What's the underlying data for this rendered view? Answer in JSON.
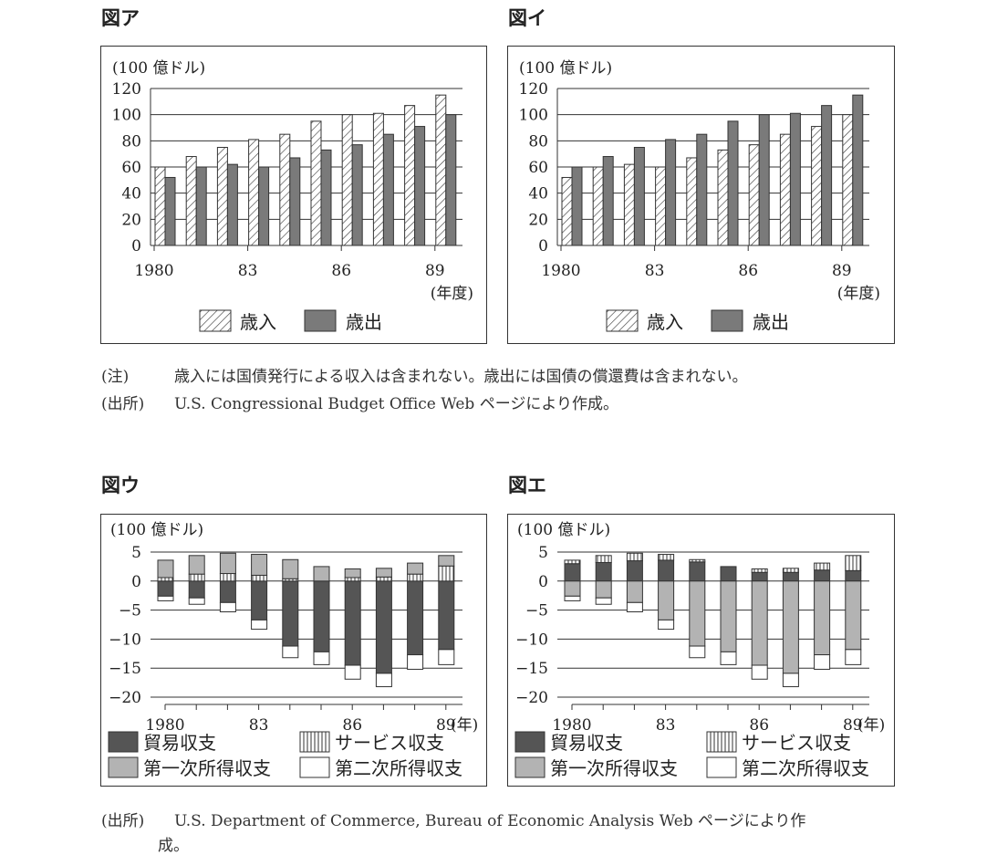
{
  "figures": {
    "a": {
      "title": "図ア",
      "unit": "(100 億ドル)",
      "year_suffix": "(年度)",
      "legend": [
        "歳入",
        "歳出"
      ]
    },
    "i": {
      "title": "図イ",
      "unit": "(100 億ドル)",
      "year_suffix": "(年度)",
      "legend": [
        "歳入",
        "歳出"
      ]
    },
    "u": {
      "title": "図ウ",
      "unit": "(100 億ドル)",
      "year_suffix": "(年)",
      "legend": [
        "貿易収支",
        "サービス収支",
        "第一次所得収支",
        "第二次所得収支"
      ]
    },
    "e": {
      "title": "図エ",
      "unit": "(100 億ドル)",
      "year_suffix": "(年)",
      "legend": [
        "貿易収支",
        "サービス収支",
        "第一次所得収支",
        "第二次所得収支"
      ]
    }
  },
  "notes": {
    "top_note_label": "(注)",
    "top_note_text": "歳入には国債発行による収入は含まれない。歳出には国債の償還費は含まれない。",
    "top_source_label": "(出所)",
    "top_source_text": "U.S. Congressional Budget Office Web ページにより作成。",
    "bottom_source_label": "(出所)",
    "bottom_source_text": "U.S. Department of Commerce, Bureau of Economic Analysis Web ページにより作",
    "bottom_source_text_cont": "成。"
  },
  "colors": {
    "bar_dark": "#7a7a7a",
    "trade": "#555555",
    "primary_income": "#b3b3b3",
    "service_fill": "#ffffff",
    "secondary_fill": "#ffffff",
    "axis": "#222222"
  },
  "chart_data": [
    {
      "id": "a",
      "type": "bar",
      "title": "図ア",
      "ylabel": "(100 億ドル)",
      "xlabel": "(年度)",
      "ylim": [
        0,
        120
      ],
      "yticks": [
        0,
        20,
        40,
        60,
        80,
        100,
        120
      ],
      "x": [
        1980,
        1981,
        1982,
        1983,
        1984,
        1985,
        1986,
        1987,
        1988,
        1989
      ],
      "xtick_labels": [
        "1980",
        "83",
        "86",
        "89"
      ],
      "xtick_years": [
        1980,
        1983,
        1986,
        1989
      ],
      "grid": true,
      "legend_position": "bottom",
      "series": [
        {
          "name": "歳入",
          "pattern": "hatch",
          "values": [
            60,
            68,
            75,
            81,
            85,
            95,
            100,
            101,
            107,
            115
          ]
        },
        {
          "name": "歳出",
          "pattern": "gray",
          "values": [
            52,
            60,
            62,
            60,
            67,
            73,
            77,
            85,
            91,
            100
          ]
        }
      ]
    },
    {
      "id": "i",
      "type": "bar",
      "title": "図イ",
      "ylabel": "(100 億ドル)",
      "xlabel": "(年度)",
      "ylim": [
        0,
        120
      ],
      "yticks": [
        0,
        20,
        40,
        60,
        80,
        100,
        120
      ],
      "x": [
        1980,
        1981,
        1982,
        1983,
        1984,
        1985,
        1986,
        1987,
        1988,
        1989
      ],
      "xtick_labels": [
        "1980",
        "83",
        "86",
        "89"
      ],
      "xtick_years": [
        1980,
        1983,
        1986,
        1989
      ],
      "grid": true,
      "legend_position": "bottom",
      "series": [
        {
          "name": "歳入",
          "pattern": "hatch",
          "values": [
            52,
            60,
            62,
            60,
            67,
            73,
            77,
            85,
            91,
            100
          ]
        },
        {
          "name": "歳出",
          "pattern": "gray",
          "values": [
            60,
            68,
            75,
            81,
            85,
            95,
            100,
            101,
            107,
            115
          ]
        }
      ]
    },
    {
      "id": "u",
      "type": "bar",
      "stacked": true,
      "title": "図ウ",
      "ylabel": "(100 億ドル)",
      "xlabel": "(年)",
      "ylim": [
        -20,
        5
      ],
      "yticks": [
        5,
        0,
        -5,
        -10,
        -15,
        -20
      ],
      "x": [
        1980,
        1981,
        1982,
        1983,
        1984,
        1985,
        1986,
        1987,
        1988,
        1989
      ],
      "xtick_labels": [
        "1980",
        "83",
        "86",
        "89"
      ],
      "xtick_years": [
        1980,
        1983,
        1986,
        1989
      ],
      "grid": true,
      "legend_position": "bottom",
      "series": [
        {
          "name": "貿易収支",
          "pattern": "trade",
          "values": [
            -2.6,
            -2.9,
            -3.7,
            -6.7,
            -11.2,
            -12.2,
            -14.5,
            -15.9,
            -12.7,
            -11.8
          ]
        },
        {
          "name": "サービス収支",
          "pattern": "vstripe",
          "values": [
            0.6,
            1.2,
            1.3,
            1.0,
            0.4,
            0.0,
            0.6,
            0.7,
            1.2,
            2.6
          ]
        },
        {
          "name": "第一次所得収支",
          "pattern": "primary",
          "values": [
            3.0,
            3.2,
            3.5,
            3.6,
            3.3,
            2.5,
            1.5,
            1.5,
            1.9,
            1.8
          ]
        },
        {
          "name": "第二次所得収支",
          "pattern": "white",
          "values": [
            -0.8,
            -1.1,
            -1.6,
            -1.6,
            -2.0,
            -2.2,
            -2.4,
            -2.3,
            -2.5,
            -2.6
          ]
        }
      ]
    },
    {
      "id": "e",
      "type": "bar",
      "stacked": true,
      "title": "図エ",
      "ylabel": "(100 億ドル)",
      "xlabel": "(年)",
      "ylim": [
        -20,
        5
      ],
      "yticks": [
        5,
        0,
        -5,
        -10,
        -15,
        -20
      ],
      "x": [
        1980,
        1981,
        1982,
        1983,
        1984,
        1985,
        1986,
        1987,
        1988,
        1989
      ],
      "xtick_labels": [
        "1980",
        "83",
        "86",
        "89"
      ],
      "xtick_years": [
        1980,
        1983,
        1986,
        1989
      ],
      "grid": true,
      "legend_position": "bottom",
      "series": [
        {
          "name": "貿易収支",
          "pattern": "trade",
          "values": [
            3.0,
            3.2,
            3.5,
            3.6,
            3.3,
            2.5,
            1.5,
            1.5,
            1.9,
            1.8
          ]
        },
        {
          "name": "サービス収支",
          "pattern": "vstripe",
          "values": [
            0.6,
            1.2,
            1.3,
            1.0,
            0.4,
            0.0,
            0.6,
            0.7,
            1.2,
            2.6
          ]
        },
        {
          "name": "第一次所得収支",
          "pattern": "primary",
          "values": [
            -2.6,
            -2.9,
            -3.7,
            -6.7,
            -11.2,
            -12.2,
            -14.5,
            -15.9,
            -12.7,
            -11.8
          ]
        },
        {
          "name": "第二次所得収支",
          "pattern": "white",
          "values": [
            -0.8,
            -1.1,
            -1.6,
            -1.6,
            -2.0,
            -2.2,
            -2.4,
            -2.3,
            -2.5,
            -2.6
          ]
        }
      ]
    }
  ]
}
